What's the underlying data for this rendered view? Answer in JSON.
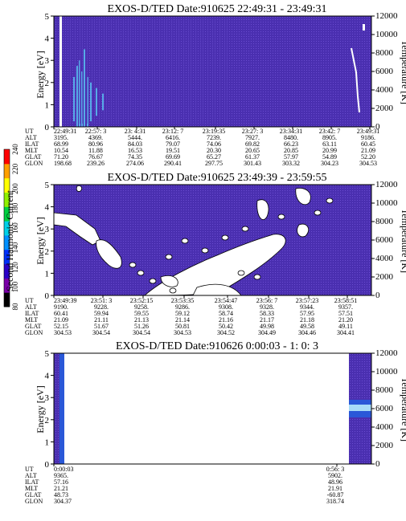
{
  "colors": {
    "background": "#4a2fb0",
    "ribbon": "#58bef0",
    "band_light": "#a8dcf8",
    "band_deep": "#2a58d8",
    "white": "#ffffff"
  },
  "chart_data": [
    {
      "type": "heatmap",
      "title": "EXOS-D/TED   Date:910625  22:49:31 - 23:49:31",
      "ylabel": "Energy [eV]",
      "y2label": "Temperature [K]",
      "ylim": [
        0,
        5
      ],
      "y2lim": [
        0,
        12000
      ],
      "yticks": [
        "0",
        "1",
        "2",
        "3",
        "4",
        "5"
      ],
      "y2ticks": [
        "0",
        "2000",
        "4000",
        "6000",
        "8000",
        "10000",
        "12000"
      ],
      "background": "dark blue/purple with streaks of light blue",
      "row_labels": [
        "UT",
        "ALT",
        "ILAT",
        "MLT",
        "GLAT",
        "GLON"
      ],
      "columns": [
        [
          "22:49:31",
          "3195.",
          "68.99",
          "10.54",
          "71.20",
          "198.68"
        ],
        [
          "22:57: 3",
          "4369.",
          "80.96",
          "11.88",
          "76.67",
          "239.26"
        ],
        [
          "23: 4:31",
          "5444.",
          "84.03",
          "16.53",
          "74.35",
          "274.06"
        ],
        [
          "23:12: 7",
          "6416.",
          "79.07",
          "19.51",
          "69.69",
          "290.41"
        ],
        [
          "23:19:35",
          "7239.",
          "74.06",
          "20.30",
          "65.27",
          "297.75"
        ],
        [
          "23:27: 3",
          "7927.",
          "69.82",
          "20.65",
          "61.37",
          "301.43"
        ],
        [
          "23:34:31",
          "8480.",
          "66.23",
          "20.85",
          "57.97",
          "303.32"
        ],
        [
          "23:42: 7",
          "8905.",
          "63.11",
          "20.99",
          "54.89",
          "304.23"
        ],
        [
          "23:49:31",
          "9186.",
          "60.45",
          "21.09",
          "52.20",
          "304.53"
        ]
      ]
    },
    {
      "type": "heatmap",
      "title": "EXOS-D/TED   Date:910625  23:49:39 - 23:59:55",
      "ylabel": "Energy [eV]",
      "y2label": "Temperature [K]",
      "ylim": [
        0,
        5
      ],
      "y2lim": [
        0,
        12000
      ],
      "yticks": [
        "0",
        "1",
        "2",
        "3",
        "4",
        "5"
      ],
      "y2ticks": [
        "0",
        "2000",
        "4000",
        "6000",
        "8000",
        "10000",
        "12000"
      ],
      "colorbar": {
        "label": "Second Harmonic Current",
        "ticks": [
          "80",
          "100",
          "120",
          "140",
          "160",
          "180",
          "200",
          "220",
          "240"
        ],
        "range": [
          80,
          240
        ],
        "colors": [
          "#000000",
          "#7a00a8",
          "#2a00c8",
          "#0030ff",
          "#0090ff",
          "#00d0e8",
          "#00d040",
          "#90f000",
          "#ffff00",
          "#ffa000",
          "#ff0000"
        ]
      },
      "row_labels": [
        "UT",
        "ALT",
        "ILAT",
        "MLT",
        "GLAT",
        "GLON"
      ],
      "columns": [
        [
          "23:49:39",
          "9190.",
          "60.41",
          "21.09",
          "52.15",
          "304.53"
        ],
        [
          "23:51: 3",
          "9228.",
          "59.94",
          "21.11",
          "51.67",
          "304.54"
        ],
        [
          "23:52:15",
          "9258.",
          "59.55",
          "21.13",
          "51.26",
          "304.54"
        ],
        [
          "23:53:35",
          "9286.",
          "59.12",
          "21.14",
          "50.81",
          "304.53"
        ],
        [
          "23:54:47",
          "9308.",
          "58.74",
          "21.16",
          "50.42",
          "304.52"
        ],
        [
          "23:56: 7",
          "9328.",
          "58.33",
          "21.17",
          "49.98",
          "304.49"
        ],
        [
          "23:57:23",
          "9344.",
          "57.95",
          "21.18",
          "49.58",
          "304.46"
        ],
        [
          "23:58:51",
          "9357.",
          "57.51",
          "21.20",
          "49.11",
          "304.41"
        ]
      ]
    },
    {
      "type": "heatmap",
      "title": "EXOS-D/TED   Date:910626   0:00:03 - 1: 0: 3",
      "ylabel": "Energy [eV]",
      "y2label": "Temperature [K]",
      "ylim": [
        0,
        5
      ],
      "y2lim": [
        0,
        12000
      ],
      "yticks": [
        "0",
        "1",
        "2",
        "3",
        "4",
        "5"
      ],
      "y2ticks": [
        "0",
        "2000",
        "4000",
        "6000",
        "8000",
        "10000",
        "12000"
      ],
      "row_labels": [
        "UT",
        "ALT",
        "ILAT",
        "MLT",
        "GLAT",
        "GLON"
      ],
      "columns": [
        [
          "0:00:03",
          "9365.",
          "57.16",
          "21.21",
          "48.73",
          "304.37"
        ],
        [
          "0:56: 3",
          "5902.",
          "48.96",
          "21.91",
          "-60.87",
          "318.74"
        ]
      ]
    }
  ]
}
